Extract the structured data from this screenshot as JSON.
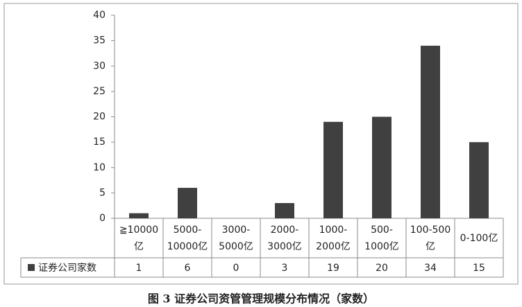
{
  "chart_data": {
    "type": "bar",
    "title": "图 3 证券公司资管管理规模分布情况（家数）",
    "categories": [
      "≧10000\n亿",
      "5000-\n10000亿",
      "3000-\n5000亿",
      "2000-\n3000亿",
      "1000-\n2000亿",
      "500-\n1000亿",
      "100-500\n亿",
      "0-100亿"
    ],
    "series": [
      {
        "name": "证券公司家数",
        "color": "#404040",
        "values": [
          1,
          6,
          0,
          3,
          19,
          20,
          34,
          15
        ]
      }
    ],
    "ylim": [
      0,
      40
    ],
    "yticks": [
      0,
      5,
      10,
      15,
      20,
      25,
      30,
      35,
      40
    ],
    "grid": false
  }
}
